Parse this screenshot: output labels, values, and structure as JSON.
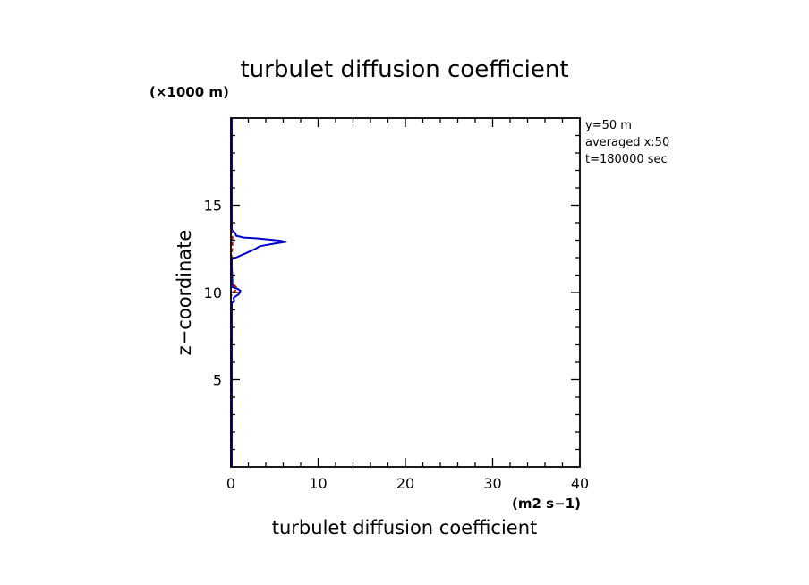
{
  "chart_data": {
    "type": "line",
    "title": "turbulet diffusion coefficient",
    "xlabel": "turbulet diffusion coefficient",
    "ylabel": "z−coordinate",
    "x_unit": "(m2 s−1)",
    "y_unit": "(×1000 m)",
    "xlim": [
      0,
      40
    ],
    "ylim": [
      0,
      20
    ],
    "x_ticks": [
      0,
      10,
      20,
      30,
      40
    ],
    "y_ticks": [
      5,
      10,
      15
    ],
    "x_tick_labels": [
      "0",
      "10",
      "20",
      "30",
      "40"
    ],
    "y_tick_labels": [
      "5",
      "10",
      "15"
    ],
    "grid": false,
    "info_lines": [
      "y=50  m",
      "averaged  x:50",
      "t=180000 sec"
    ],
    "series": [
      {
        "color": "#0000cc",
        "points": [
          [
            0.1,
            0
          ],
          [
            0.1,
            9.4
          ],
          [
            0.4,
            9.5
          ],
          [
            0.3,
            9.7
          ],
          [
            0.9,
            9.9
          ],
          [
            1.1,
            10.1
          ],
          [
            0.8,
            10.2
          ],
          [
            0.2,
            10.3
          ],
          [
            0.1,
            11.5
          ],
          [
            0.1,
            11.9
          ],
          [
            1.5,
            12.2
          ],
          [
            2.8,
            12.5
          ],
          [
            3.3,
            12.65
          ],
          [
            5.0,
            12.8
          ],
          [
            6.3,
            12.9
          ],
          [
            5.5,
            12.98
          ],
          [
            3.0,
            13.1
          ],
          [
            1.5,
            13.15
          ],
          [
            0.6,
            13.25
          ],
          [
            0.5,
            13.4
          ],
          [
            0.1,
            13.6
          ],
          [
            0.1,
            20
          ]
        ]
      },
      {
        "color": "#cc0000",
        "dashed": true,
        "points": [
          [
            0,
            0
          ],
          [
            0,
            9.8
          ],
          [
            0.2,
            10.0
          ],
          [
            0.5,
            10.1
          ],
          [
            0.6,
            10.3
          ],
          [
            0.2,
            10.5
          ],
          [
            0,
            10.6
          ],
          [
            0,
            11.8
          ],
          [
            0.15,
            12.5
          ],
          [
            0.2,
            13.0
          ],
          [
            0.1,
            13.5
          ],
          [
            0,
            13.7
          ],
          [
            0,
            20
          ]
        ]
      }
    ]
  }
}
